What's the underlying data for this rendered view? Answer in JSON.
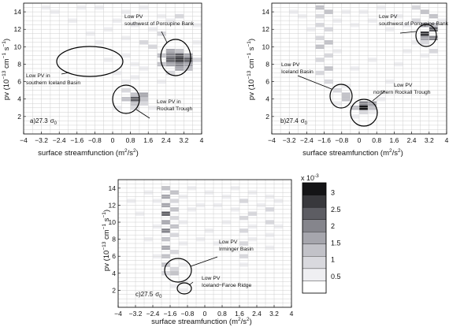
{
  "colorbar": {
    "exponent_label": "x 10",
    "exponent_power": "-3",
    "ticks": [
      "3",
      "2.5",
      "2",
      "1.5",
      "1",
      "0.5"
    ],
    "range": [
      0,
      0.0033
    ],
    "colors": [
      "#ffffff",
      "#efeff2",
      "#d9d9de",
      "#c2c2c8",
      "#a6a6ad",
      "#85858c",
      "#5d5d63",
      "#38383c",
      "#141416"
    ]
  },
  "chart_data": [
    {
      "type": "heatmap",
      "panel_label": "a)27.3",
      "sigma": "σ",
      "sigma_sub": "0",
      "xlabel": "surface streamfunction (m",
      "xlabel_sup": "2",
      "xlabel_tail": "/s",
      "xlabel_sup2": "2",
      "xlabel_end": ")",
      "ylabel_pre": "pv (10",
      "ylabel_sup1": "−13",
      "ylabel_mid": " cm",
      "ylabel_sup2": "−1",
      "ylabel_mid2": " s",
      "ylabel_sup3": "−1",
      "ylabel_end": ")",
      "xlim": [
        -4,
        4
      ],
      "ylim": [
        0,
        15
      ],
      "xticks": [
        "−4",
        "−3.2",
        "−2.4",
        "−1.6",
        "−0.8",
        "0",
        "0.8",
        "1.6",
        "2.4",
        "3.2",
        "4"
      ],
      "yticks": [
        "2",
        "4",
        "6",
        "8",
        "10",
        "12",
        "14"
      ],
      "grid": true,
      "bin_size": [
        0.4,
        0.5
      ],
      "cells": [
        [
          -1.4,
          14.5,
          0.00045
        ],
        [
          -0.6,
          14.5,
          0.0007
        ],
        [
          0.6,
          14.0,
          0.0006
        ],
        [
          1.4,
          14.5,
          0.0005
        ],
        [
          2.2,
          13.5,
          0.0006
        ],
        [
          2.6,
          13.0,
          0.0007
        ],
        [
          3.0,
          13.5,
          0.0008
        ],
        [
          0.2,
          13.0,
          0.0005
        ],
        [
          1.0,
          12.5,
          0.0006
        ],
        [
          1.8,
          12.0,
          0.0007
        ],
        [
          2.2,
          11.5,
          0.0009
        ],
        [
          -0.2,
          12.0,
          0.0004
        ],
        [
          0.6,
          11.0,
          0.0005
        ],
        [
          1.4,
          10.5,
          0.0008
        ],
        [
          1.8,
          10.0,
          0.0009
        ],
        [
          2.2,
          9.0,
          0.0012
        ],
        [
          2.6,
          9.5,
          0.0016
        ],
        [
          2.6,
          8.5,
          0.0022
        ],
        [
          2.6,
          8.0,
          0.0018
        ],
        [
          3.0,
          9.0,
          0.0024
        ],
        [
          3.0,
          8.5,
          0.0028
        ],
        [
          3.0,
          8.0,
          0.0021
        ],
        [
          3.4,
          8.5,
          0.0025
        ],
        [
          3.4,
          9.0,
          0.0018
        ],
        [
          3.4,
          8.0,
          0.0016
        ],
        [
          3.0,
          9.5,
          0.0014
        ],
        [
          2.6,
          9.0,
          0.0019
        ],
        [
          2.2,
          8.0,
          0.0011
        ],
        [
          3.0,
          7.5,
          0.0015
        ],
        [
          3.4,
          7.5,
          0.0012
        ],
        [
          2.6,
          7.0,
          0.0009
        ],
        [
          3.8,
          8.5,
          0.0008
        ],
        [
          0.6,
          9.0,
          0.0005
        ],
        [
          1.0,
          8.0,
          0.0006
        ],
        [
          1.4,
          7.5,
          0.0006
        ],
        [
          -0.2,
          8.5,
          0.0004
        ],
        [
          0.2,
          7.0,
          0.0005
        ],
        [
          0.6,
          6.0,
          0.0005
        ],
        [
          1.0,
          6.5,
          0.0004
        ],
        [
          0.6,
          5.0,
          0.0009
        ],
        [
          1.0,
          4.5,
          0.0014
        ],
        [
          1.0,
          4.0,
          0.0022
        ],
        [
          1.4,
          4.5,
          0.0017
        ],
        [
          1.4,
          4.0,
          0.0012
        ],
        [
          0.6,
          4.0,
          0.0011
        ],
        [
          1.0,
          3.5,
          0.0013
        ],
        [
          1.0,
          3.0,
          0.0009
        ],
        [
          1.4,
          3.5,
          0.0008
        ],
        [
          1.8,
          3.0,
          0.0006
        ],
        [
          0.2,
          3.0,
          0.0004
        ],
        [
          -0.6,
          10.5,
          0.0004
        ],
        [
          -1.0,
          11.5,
          0.0005
        ],
        [
          -1.8,
          13.0,
          0.0004
        ],
        [
          -2.6,
          14.0,
          0.0004
        ],
        [
          -3.4,
          13.5,
          0.0003
        ],
        [
          -3.0,
          14.5,
          0.0004
        ],
        [
          -2.2,
          11.0,
          0.0003
        ],
        [
          3.8,
          12.5,
          0.0005
        ],
        [
          3.8,
          10.5,
          0.0005
        ],
        [
          2.2,
          6.0,
          0.0005
        ]
      ],
      "annotations": [
        {
          "lines": [
            "Low PV",
            "southwest of Porcupine Bank"
          ]
        },
        {
          "lines": [
            "Low PV in",
            "southern Iceland Basin"
          ]
        },
        {
          "lines": [
            "Low PV in",
            "Rockall Trough"
          ]
        }
      ]
    },
    {
      "type": "heatmap",
      "panel_label": "b)27.4",
      "sigma": "σ",
      "sigma_sub": "0",
      "xlabel": "surface streamfunction (m",
      "xlabel_sup": "2",
      "xlabel_tail": "/s",
      "xlabel_sup2": "2",
      "xlabel_end": ")",
      "ylabel_pre": "pv (10",
      "ylabel_sup1": "−13",
      "ylabel_mid": " cm",
      "ylabel_sup2": "−1",
      "ylabel_mid2": " s",
      "ylabel_sup3": "−1",
      "ylabel_end": ")",
      "xlim": [
        -4,
        4
      ],
      "ylim": [
        0,
        15
      ],
      "xticks": [
        "−4",
        "−3.2",
        "−2.4",
        "−1.6",
        "−0.8",
        "0",
        "0.8",
        "1.6",
        "2.4",
        "3.2",
        "4"
      ],
      "yticks": [
        "2",
        "4",
        "6",
        "8",
        "10",
        "12",
        "14"
      ],
      "grid": true,
      "bin_size": [
        0.4,
        0.5
      ],
      "cells": [
        [
          -1.8,
          14.5,
          0.0012
        ],
        [
          -1.8,
          13.5,
          0.0009
        ],
        [
          -1.8,
          12.5,
          0.0008
        ],
        [
          -1.4,
          14.0,
          0.0011
        ],
        [
          -1.4,
          12.0,
          0.0009
        ],
        [
          -1.4,
          10.5,
          0.0013
        ],
        [
          -1.8,
          11.0,
          0.001
        ],
        [
          -1.8,
          10.0,
          0.0012
        ],
        [
          -1.4,
          9.0,
          0.001
        ],
        [
          -1.8,
          8.5,
          0.0009
        ],
        [
          -1.4,
          7.5,
          0.0011
        ],
        [
          -1.8,
          7.0,
          0.0008
        ],
        [
          -1.4,
          6.0,
          0.0009
        ],
        [
          -1.0,
          13.0,
          0.0007
        ],
        [
          -1.0,
          9.5,
          0.0006
        ],
        [
          -2.2,
          12.0,
          0.0005
        ],
        [
          -2.6,
          13.5,
          0.0004
        ],
        [
          -3.0,
          14.0,
          0.0004
        ],
        [
          -0.6,
          14.0,
          0.0005
        ],
        [
          -0.2,
          12.5,
          0.0005
        ],
        [
          0.2,
          14.0,
          0.0004
        ],
        [
          0.6,
          13.0,
          0.0006
        ],
        [
          1.0,
          14.5,
          0.0005
        ],
        [
          1.4,
          12.0,
          0.0006
        ],
        [
          1.8,
          13.5,
          0.0005
        ],
        [
          2.2,
          12.5,
          0.0007
        ],
        [
          2.6,
          14.5,
          0.0008
        ],
        [
          2.6,
          13.0,
          0.0009
        ],
        [
          3.0,
          14.0,
          0.0014
        ],
        [
          3.0,
          12.5,
          0.0018
        ],
        [
          3.0,
          11.5,
          0.0026
        ],
        [
          3.4,
          12.0,
          0.0022
        ],
        [
          3.4,
          11.0,
          0.0019
        ],
        [
          3.0,
          11.0,
          0.0017
        ],
        [
          3.4,
          12.5,
          0.0013
        ],
        [
          3.4,
          13.5,
          0.0011
        ],
        [
          3.0,
          10.5,
          0.0009
        ],
        [
          3.4,
          9.5,
          0.0008
        ],
        [
          3.0,
          9.0,
          0.0007
        ],
        [
          3.8,
          13.0,
          0.0007
        ],
        [
          -0.6,
          4.5,
          0.0014
        ],
        [
          -0.6,
          4.0,
          0.0011
        ],
        [
          -1.0,
          5.0,
          0.0009
        ],
        [
          -0.6,
          5.5,
          0.0007
        ],
        [
          -1.0,
          3.5,
          0.0006
        ],
        [
          0.2,
          3.5,
          0.0021
        ],
        [
          0.2,
          3.0,
          0.003
        ],
        [
          0.6,
          3.5,
          0.0016
        ],
        [
          0.6,
          3.0,
          0.0012
        ],
        [
          0.2,
          2.5,
          0.001
        ],
        [
          -0.2,
          3.0,
          0.0013
        ],
        [
          -0.2,
          2.0,
          0.0006
        ],
        [
          0.6,
          2.5,
          0.0007
        ],
        [
          1.0,
          4.0,
          0.0006
        ],
        [
          1.4,
          6.0,
          0.0005
        ],
        [
          1.8,
          8.0,
          0.0005
        ],
        [
          2.2,
          9.5,
          0.0006
        ],
        [
          0.6,
          8.5,
          0.0004
        ],
        [
          -0.2,
          7.5,
          0.0004
        ],
        [
          2.6,
          10.5,
          0.0007
        ]
      ],
      "annotations": [
        {
          "lines": [
            "Low PV",
            "southwest of Porcupine Bank"
          ]
        },
        {
          "lines": [
            "Low PV",
            "Iceland Basin"
          ]
        },
        {
          "lines": [
            "Low PV",
            "northern Rockall Trough"
          ]
        }
      ]
    },
    {
      "type": "heatmap",
      "panel_label": "c)27.5",
      "sigma": "σ",
      "sigma_sub": "0",
      "xlabel": "surface streamfunction (m",
      "xlabel_sup": "2",
      "xlabel_tail": "/s",
      "xlabel_sup2": "2",
      "xlabel_end": ")",
      "ylabel_pre": "pv (10",
      "ylabel_sup1": "−13",
      "ylabel_mid": " cm",
      "ylabel_sup2": "−1",
      "ylabel_mid2": " s",
      "ylabel_sup3": "−1",
      "ylabel_end": ")",
      "xlim": [
        -4,
        4
      ],
      "ylim": [
        0,
        15
      ],
      "xticks": [
        "−4",
        "−3.2",
        "−2.4",
        "−1.6",
        "−0.8",
        "0",
        "0.8",
        "1.6",
        "2.4",
        "3.2",
        "4"
      ],
      "yticks": [
        "2",
        "4",
        "6",
        "8",
        "10",
        "12",
        "14"
      ],
      "grid": true,
      "bin_size": [
        0.4,
        0.5
      ],
      "cells": [
        [
          -1.8,
          14.0,
          0.0012
        ],
        [
          -1.8,
          13.0,
          0.0015
        ],
        [
          -1.8,
          12.0,
          0.0018
        ],
        [
          -1.8,
          11.0,
          0.0022
        ],
        [
          -1.8,
          10.0,
          0.0016
        ],
        [
          -1.8,
          9.0,
          0.0019
        ],
        [
          -1.8,
          8.0,
          0.0014
        ],
        [
          -1.8,
          7.0,
          0.0017
        ],
        [
          -1.8,
          6.0,
          0.0013
        ],
        [
          -1.8,
          5.0,
          0.0011
        ],
        [
          -1.4,
          13.5,
          0.0012
        ],
        [
          -1.4,
          12.5,
          0.001
        ],
        [
          -1.4,
          11.5,
          0.0013
        ],
        [
          -1.4,
          10.5,
          0.0009
        ],
        [
          -1.4,
          9.5,
          0.0011
        ],
        [
          -1.4,
          8.5,
          0.0008
        ],
        [
          -1.4,
          6.5,
          0.001
        ],
        [
          -1.4,
          4.5,
          0.0009
        ],
        [
          -1.4,
          4.0,
          0.0013
        ],
        [
          -1.8,
          4.0,
          0.0008
        ],
        [
          -1.0,
          13.0,
          0.0007
        ],
        [
          -1.0,
          10.0,
          0.0006
        ],
        [
          -1.0,
          7.5,
          0.0007
        ],
        [
          -1.0,
          5.0,
          0.0006
        ],
        [
          -2.2,
          12.5,
          0.0006
        ],
        [
          -2.2,
          9.5,
          0.0005
        ],
        [
          -2.6,
          13.5,
          0.0005
        ],
        [
          -3.0,
          11.0,
          0.0004
        ],
        [
          -3.4,
          12.5,
          0.0004
        ],
        [
          -2.6,
          8.0,
          0.0004
        ],
        [
          -0.6,
          14.0,
          0.0006
        ],
        [
          -0.6,
          11.5,
          0.0005
        ],
        [
          -0.2,
          12.0,
          0.0005
        ],
        [
          0.2,
          13.5,
          0.0006
        ],
        [
          0.6,
          12.0,
          0.0005
        ],
        [
          1.0,
          13.0,
          0.0006
        ],
        [
          1.4,
          14.0,
          0.0006
        ],
        [
          1.4,
          11.5,
          0.0005
        ],
        [
          1.8,
          12.5,
          0.0008
        ],
        [
          1.8,
          10.5,
          0.0009
        ],
        [
          1.8,
          9.0,
          0.001
        ],
        [
          1.8,
          7.5,
          0.0009
        ],
        [
          1.8,
          6.0,
          0.0008
        ],
        [
          1.8,
          5.0,
          0.0007
        ],
        [
          2.2,
          13.5,
          0.0007
        ],
        [
          2.2,
          11.0,
          0.0008
        ],
        [
          2.2,
          9.5,
          0.0007
        ],
        [
          2.2,
          8.0,
          0.0006
        ],
        [
          2.6,
          12.0,
          0.0006
        ],
        [
          3.0,
          13.0,
          0.0007
        ],
        [
          3.0,
          11.5,
          0.0008
        ],
        [
          3.0,
          10.0,
          0.0009
        ],
        [
          3.0,
          8.5,
          0.0007
        ],
        [
          3.0,
          7.0,
          0.0006
        ],
        [
          3.4,
          12.5,
          0.0006
        ],
        [
          3.4,
          9.5,
          0.0006
        ],
        [
          0.2,
          9.0,
          0.0004
        ],
        [
          0.6,
          7.5,
          0.0004
        ],
        [
          1.0,
          10.0,
          0.0005
        ],
        [
          -0.2,
          8.0,
          0.0004
        ],
        [
          -1.0,
          3.0,
          0.0006
        ],
        [
          -1.4,
          2.5,
          0.0005
        ],
        [
          -1.0,
          2.0,
          0.0004
        ],
        [
          -2.2,
          6.0,
          0.0004
        ],
        [
          -3.0,
          9.0,
          0.0003
        ]
      ],
      "annotations": [
        {
          "lines": [
            "Low PV",
            "Irminger Basin"
          ]
        },
        {
          "lines": [
            "Low PV",
            "Iceland−Faroe Ridge"
          ]
        }
      ]
    }
  ]
}
